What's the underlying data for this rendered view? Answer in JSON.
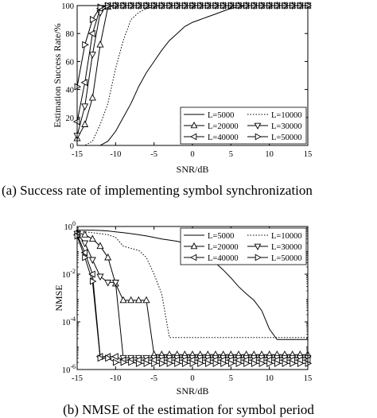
{
  "chart_data": [
    {
      "type": "line",
      "caption": "(a) Success rate of implementing symbol synchronization",
      "xlabel": "SNR/dB",
      "ylabel": "Estimation Success Rate/%",
      "xlim": [
        -15,
        15
      ],
      "ylim": [
        0,
        100
      ],
      "xticks": [
        -15,
        -10,
        -5,
        0,
        5,
        10,
        15
      ],
      "xtick_labels": [
        "-15",
        "-10",
        "-5",
        "0",
        "5",
        "10",
        "15"
      ],
      "yticks": [
        0,
        20,
        40,
        60,
        80,
        100
      ],
      "ytick_labels": [
        "0",
        "20",
        "40",
        "60",
        "80",
        "100"
      ],
      "legend_position": "bottom-right",
      "series": [
        {
          "name": "L=5000",
          "marker": "none",
          "dash": "solid",
          "x": [
            -15,
            -14,
            -13,
            -12,
            -11,
            -10,
            -9,
            -8,
            -7,
            -6,
            -5,
            -4,
            -3,
            -2,
            -1,
            0,
            1,
            2,
            3,
            4,
            5,
            6,
            7,
            8,
            9,
            10,
            11,
            12,
            13,
            14,
            15
          ],
          "y": [
            0,
            0,
            0,
            0,
            3,
            10,
            20,
            30,
            42,
            52,
            60,
            68,
            75,
            80,
            85,
            88,
            90,
            92,
            94,
            96,
            98,
            99,
            100,
            100,
            100,
            100,
            100,
            100,
            100,
            100,
            100
          ]
        },
        {
          "name": "L=10000",
          "marker": "none",
          "dash": "dotted",
          "x": [
            -15,
            -14,
            -13,
            -12,
            -11,
            -10,
            -9,
            -8,
            -7,
            -6,
            -5,
            -4,
            -3,
            -2,
            -1,
            0,
            1,
            2,
            3,
            4,
            5,
            6,
            7,
            8,
            9,
            10,
            11,
            12,
            13,
            14,
            15
          ],
          "y": [
            0,
            0,
            3,
            15,
            30,
            55,
            75,
            90,
            95,
            98,
            99,
            100,
            100,
            100,
            100,
            100,
            100,
            100,
            100,
            100,
            100,
            100,
            100,
            100,
            100,
            100,
            100,
            100,
            100,
            100,
            100
          ]
        },
        {
          "name": "L=20000",
          "marker": "triangle-up",
          "dash": "solid",
          "x": [
            -15,
            -14,
            -13,
            -12,
            -11,
            -10,
            -9,
            -8,
            -7,
            -6,
            -5,
            -4,
            -3,
            -2,
            -1,
            0,
            1,
            2,
            3,
            4,
            5,
            6,
            7,
            8,
            9,
            10,
            11,
            12,
            13,
            14,
            15
          ],
          "y": [
            5,
            15,
            34,
            72,
            99,
            100,
            100,
            100,
            100,
            100,
            100,
            100,
            100,
            100,
            100,
            100,
            100,
            100,
            100,
            100,
            100,
            100,
            100,
            100,
            100,
            100,
            100,
            100,
            100,
            100,
            100
          ]
        },
        {
          "name": "L=30000",
          "marker": "triangle-down",
          "dash": "solid",
          "x": [
            -15,
            -14,
            -13,
            -12,
            -11,
            -10,
            -9,
            -8,
            -7,
            -6,
            -5,
            -4,
            -3,
            -2,
            -1,
            0,
            1,
            2,
            3,
            4,
            5,
            6,
            7,
            8,
            9,
            10,
            11,
            12,
            13,
            14,
            15
          ],
          "y": [
            7,
            28,
            65,
            95,
            100,
            100,
            100,
            100,
            100,
            100,
            100,
            100,
            100,
            100,
            100,
            100,
            100,
            100,
            100,
            100,
            100,
            100,
            100,
            100,
            100,
            100,
            100,
            100,
            100,
            100,
            100
          ]
        },
        {
          "name": "L=40000",
          "marker": "triangle-left",
          "dash": "solid",
          "x": [
            -15,
            -14,
            -13,
            -12,
            -11,
            -10,
            -9,
            -8,
            -7,
            -6,
            -5,
            -4,
            -3,
            -2,
            -1,
            0,
            1,
            2,
            3,
            4,
            5,
            6,
            7,
            8,
            9,
            10,
            11,
            12,
            13,
            14,
            15
          ],
          "y": [
            17,
            45,
            80,
            98,
            100,
            100,
            100,
            100,
            100,
            100,
            100,
            100,
            100,
            100,
            100,
            100,
            100,
            100,
            100,
            100,
            100,
            100,
            100,
            100,
            100,
            100,
            100,
            100,
            100,
            100,
            100
          ]
        },
        {
          "name": "L=50000",
          "marker": "triangle-right",
          "dash": "solid",
          "x": [
            -15,
            -14,
            -13,
            -12,
            -11,
            -10,
            -9,
            -8,
            -7,
            -6,
            -5,
            -4,
            -3,
            -2,
            -1,
            0,
            1,
            2,
            3,
            4,
            5,
            6,
            7,
            8,
            9,
            10,
            11,
            12,
            13,
            14,
            15
          ],
          "y": [
            42,
            72,
            90,
            99,
            100,
            100,
            100,
            100,
            100,
            100,
            100,
            100,
            100,
            100,
            100,
            100,
            100,
            100,
            100,
            100,
            100,
            100,
            100,
            100,
            100,
            100,
            100,
            100,
            100,
            100,
            100
          ]
        }
      ]
    },
    {
      "type": "line",
      "caption": "(b) NMSE of the estimation for symbol period",
      "xlabel": "SNR/dB",
      "ylabel": "NMSE",
      "yscale": "log",
      "xlim": [
        -15,
        15
      ],
      "ylim": [
        1e-06,
        1
      ],
      "xticks": [
        -15,
        -10,
        -5,
        0,
        5,
        10,
        15
      ],
      "xtick_labels": [
        "-15",
        "-10",
        "-5",
        "0",
        "5",
        "10",
        "15"
      ],
      "yticks": [
        1e-06,
        0.0001,
        0.01,
        1
      ],
      "ytick_base": "10",
      "ytick_exponents": [
        "-6",
        "-4",
        "-2",
        "0"
      ],
      "legend_position": "top-right",
      "series": [
        {
          "name": "L=5000",
          "marker": "none",
          "dash": "solid",
          "x": [
            -15,
            -14,
            -13,
            -12,
            -11,
            -10,
            -9,
            -8,
            -7,
            -6,
            -5,
            -4,
            -3,
            -2,
            -1,
            0,
            1,
            2,
            3,
            4,
            5,
            6,
            7,
            8,
            9,
            10,
            11,
            12,
            13,
            14,
            15
          ],
          "y": [
            0.7,
            0.7,
            0.7,
            0.68,
            0.65,
            0.6,
            0.55,
            0.5,
            0.45,
            0.4,
            0.35,
            0.3,
            0.27,
            0.24,
            0.2,
            0.15,
            0.1,
            0.06,
            0.03,
            0.015,
            0.007,
            0.003,
            0.0015,
            0.0008,
            0.0003,
            5e-05,
            1.8e-05,
            1.8e-05,
            1.8e-05,
            1.8e-05,
            1.8e-05
          ]
        },
        {
          "name": "L=10000",
          "marker": "none",
          "dash": "dotted",
          "x": [
            -15,
            -14,
            -13,
            -12,
            -11,
            -10,
            -9,
            -8,
            -7,
            -6,
            -5,
            -4,
            -3,
            -2,
            -1,
            0,
            1,
            2,
            3,
            4,
            5,
            6,
            7,
            8,
            9,
            10,
            11,
            12,
            13,
            14,
            15
          ],
          "y": [
            0.6,
            0.6,
            0.55,
            0.5,
            0.45,
            0.35,
            0.15,
            0.12,
            0.1,
            0.05,
            0.01,
            0.0015,
            2.2e-05,
            2.2e-05,
            2.2e-05,
            2.2e-05,
            2.2e-05,
            2.2e-05,
            2.2e-05,
            2.2e-05,
            2.2e-05,
            2.2e-05,
            2.2e-05,
            2.2e-05,
            2.2e-05,
            2.2e-05,
            2.2e-05,
            2.2e-05,
            2.2e-05,
            2.2e-05,
            2.2e-05
          ]
        },
        {
          "name": "L=20000",
          "marker": "triangle-up",
          "dash": "solid",
          "x": [
            -15,
            -14,
            -13,
            -12,
            -11,
            -10,
            -9,
            -8,
            -7,
            -6,
            -5,
            -4,
            -3,
            -2,
            -1,
            0,
            1,
            2,
            3,
            4,
            5,
            6,
            7,
            8,
            9,
            10,
            11,
            12,
            13,
            14,
            15
          ],
          "y": [
            0.55,
            0.45,
            0.3,
            0.15,
            0.05,
            0.004,
            0.0008,
            0.0008,
            0.0008,
            0.0008,
            4.2e-06,
            4.2e-06,
            4.2e-06,
            4.2e-06,
            4.2e-06,
            4.2e-06,
            4.2e-06,
            4.2e-06,
            4.2e-06,
            4.2e-06,
            4.2e-06,
            4.2e-06,
            4.2e-06,
            4.2e-06,
            4.2e-06,
            4.2e-06,
            4.2e-06,
            4.2e-06,
            4.2e-06,
            4.2e-06,
            4.2e-06
          ]
        },
        {
          "name": "L=30000",
          "marker": "triangle-down",
          "dash": "solid",
          "x": [
            -15,
            -14,
            -13,
            -12,
            -11,
            -10,
            -9,
            -8,
            -7,
            -6,
            -5,
            -4,
            -3,
            -2,
            -1,
            0,
            1,
            2,
            3,
            4,
            5,
            6,
            7,
            8,
            9,
            10,
            11,
            12,
            13,
            14,
            15
          ],
          "y": [
            0.5,
            0.2,
            0.04,
            0.008,
            0.0045,
            0.0045,
            3.1e-06,
            3.1e-06,
            3.1e-06,
            3.1e-06,
            3.1e-06,
            3.1e-06,
            3.1e-06,
            3.1e-06,
            3.1e-06,
            3.1e-06,
            3.1e-06,
            3.1e-06,
            3.1e-06,
            3.1e-06,
            3.1e-06,
            3.1e-06,
            3.1e-06,
            3.1e-06,
            3.1e-06,
            3.1e-06,
            3.1e-06,
            3.1e-06,
            3.1e-06,
            3.1e-06,
            3.1e-06
          ]
        },
        {
          "name": "L=40000",
          "marker": "triangle-left",
          "dash": "solid",
          "x": [
            -15,
            -14,
            -13,
            -12,
            -11,
            -10,
            -9,
            -8,
            -7,
            -6,
            -5,
            -4,
            -3,
            -2,
            -1,
            0,
            1,
            2,
            3,
            4,
            5,
            6,
            7,
            8,
            9,
            10,
            11,
            12,
            13,
            14,
            15
          ],
          "y": [
            0.45,
            0.08,
            0.01,
            3.5e-06,
            3.5e-06,
            3.5e-06,
            2.5e-06,
            2.5e-06,
            2.5e-06,
            2.5e-06,
            2.5e-06,
            2.5e-06,
            2.5e-06,
            2.5e-06,
            2.5e-06,
            2.5e-06,
            2.5e-06,
            2.5e-06,
            2.5e-06,
            2.5e-06,
            2.5e-06,
            2.5e-06,
            2.5e-06,
            2.5e-06,
            2.5e-06,
            2.5e-06,
            2.5e-06,
            2.5e-06,
            2.5e-06,
            2.5e-06,
            2.5e-06
          ]
        },
        {
          "name": "L=50000",
          "marker": "triangle-right",
          "dash": "solid",
          "x": [
            -15,
            -14,
            -13,
            -12,
            -11,
            -10,
            -9,
            -8,
            -7,
            -6,
            -5,
            -4,
            -3,
            -2,
            -1,
            0,
            1,
            2,
            3,
            4,
            5,
            6,
            7,
            8,
            9,
            10,
            11,
            12,
            13,
            14,
            15
          ],
          "y": [
            0.4,
            0.05,
            0.005,
            3e-06,
            3e-06,
            2e-06,
            2e-06,
            2e-06,
            1.8e-06,
            1.8e-06,
            1.8e-06,
            1.8e-06,
            1.8e-06,
            1.8e-06,
            1.8e-06,
            1.8e-06,
            1.8e-06,
            1.8e-06,
            1.8e-06,
            1.8e-06,
            1.8e-06,
            1.8e-06,
            1.8e-06,
            1.8e-06,
            1.8e-06,
            1.8e-06,
            1.8e-06,
            1.8e-06,
            1.8e-06,
            1.8e-06,
            1.8e-06
          ]
        }
      ]
    }
  ]
}
